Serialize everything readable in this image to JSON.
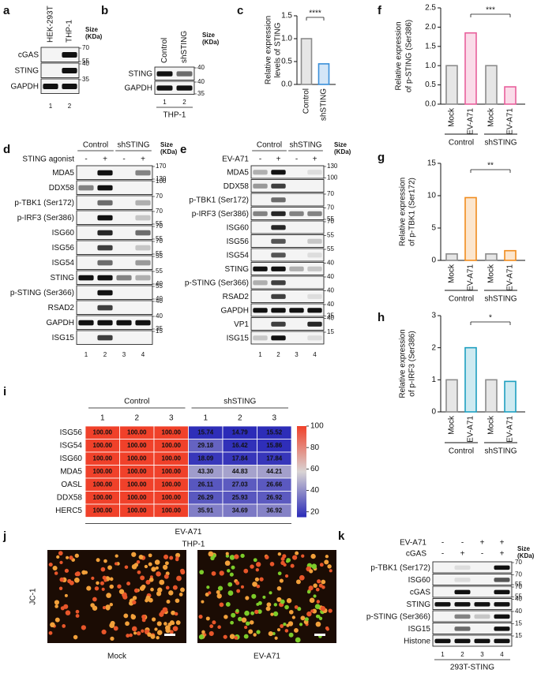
{
  "panel_letters": [
    "a",
    "b",
    "c",
    "d",
    "e",
    "f",
    "g",
    "h",
    "i",
    "j",
    "k"
  ],
  "blots": {
    "a": {
      "columns": [
        "HEK-293T",
        "THP-1"
      ],
      "size_label": [
        "Size",
        "(KDa)"
      ],
      "rows": [
        {
          "label": "cGAS",
          "markers": [
            70,
            55
          ]
        },
        {
          "label": "STING",
          "markers": [
            40
          ]
        },
        {
          "label": "GAPDH",
          "markers": [
            35
          ]
        }
      ],
      "lanes": [
        "1",
        "2"
      ]
    },
    "b": {
      "columns": [
        "Control",
        "shSTING"
      ],
      "size_label": [
        "Size",
        "(KDa)"
      ],
      "rows": [
        {
          "label": "STING",
          "markers": [
            40
          ]
        },
        {
          "label": "GAPDH",
          "markers": [
            40,
            35
          ]
        }
      ],
      "lanes": [
        "1",
        "2"
      ],
      "cell_line": "THP-1"
    },
    "d": {
      "groups": [
        "Control",
        "shSTING"
      ],
      "treatment": "STING agonist",
      "signs": [
        "-",
        "+",
        "-",
        "+"
      ],
      "size_label": [
        "Size",
        "(KDa)"
      ],
      "rows": [
        {
          "label": "MDA5",
          "markers": [
            170,
            130
          ]
        },
        {
          "label": "DDX58",
          "markers": [
            100
          ]
        },
        {
          "label": "p-TBK1 (Ser172)",
          "markers": [
            70
          ]
        },
        {
          "label": "p-IRF3 (Ser386)",
          "markers": [
            70,
            55
          ]
        },
        {
          "label": "ISG60",
          "markers": [
            70,
            55
          ]
        },
        {
          "label": "ISG56",
          "markers": [
            70,
            55
          ]
        },
        {
          "label": "ISG54",
          "markers": [
            55
          ]
        },
        {
          "label": "STING",
          "markers": [
            55,
            40
          ]
        },
        {
          "label": "p-STING (Ser366)",
          "markers": [
            55,
            40
          ]
        },
        {
          "label": "RSAD2",
          "markers": [
            40
          ]
        },
        {
          "label": "GAPDH",
          "markers": [
            40,
            35
          ]
        },
        {
          "label": "ISG15",
          "markers": [
            15
          ]
        }
      ],
      "lanes": [
        "1",
        "2",
        "3",
        "4"
      ]
    },
    "e": {
      "groups": [
        "Control",
        "shSTING"
      ],
      "treatment": "EV-A71",
      "signs": [
        "-",
        "+",
        "-",
        "+"
      ],
      "size_label": [
        "Size",
        "(KDa)"
      ],
      "rows": [
        {
          "label": "MDA5",
          "markers": [
            130,
            100
          ]
        },
        {
          "label": "DDX58",
          "markers": []
        },
        {
          "label": "p-TBK1 (Ser172)",
          "markers": [
            70
          ]
        },
        {
          "label": "p-IRF3 (Ser386)",
          "markers": [
            70,
            55
          ]
        },
        {
          "label": "ISG60",
          "markers": [
            70
          ]
        },
        {
          "label": "ISG56",
          "markers": [
            55
          ]
        },
        {
          "label": "ISG54",
          "markers": [
            55
          ]
        },
        {
          "label": "STING",
          "markers": [
            40
          ]
        },
        {
          "label": "p-STING (Ser366)",
          "markers": [
            40
          ]
        },
        {
          "label": "RSAD2",
          "markers": [
            40
          ]
        },
        {
          "label": "GAPDH",
          "markers": [
            40,
            35
          ]
        },
        {
          "label": "VP1",
          "markers": [
            40
          ]
        },
        {
          "label": "ISG15",
          "markers": [
            15
          ]
        }
      ],
      "lanes": [
        "1",
        "2",
        "3",
        "4"
      ]
    },
    "k": {
      "treatments": [
        {
          "name": "EV-A71",
          "signs": [
            "-",
            "-",
            "+",
            "+"
          ]
        },
        {
          "name": "cGAS",
          "signs": [
            "-",
            "+",
            "-",
            "+"
          ]
        }
      ],
      "size_label": [
        "Size",
        "(KDa)"
      ],
      "rows": [
        {
          "label": "p-TBK1 (Ser172)",
          "markers": [
            70
          ]
        },
        {
          "label": "ISG60",
          "markers": [
            70,
            55
          ]
        },
        {
          "label": "cGAS",
          "markers": [
            70,
            55
          ]
        },
        {
          "label": "STING",
          "markers": [
            40
          ]
        },
        {
          "label": "p-STING (Ser366)",
          "markers": [
            40
          ]
        },
        {
          "label": "ISG15",
          "markers": [
            15
          ]
        },
        {
          "label": "Histone",
          "markers": [
            15
          ]
        }
      ],
      "lanes": [
        "1",
        "2",
        "3",
        "4"
      ],
      "cell_line": "293T-STING"
    }
  },
  "chart_data": [
    {
      "type": "bar",
      "ylabel": [
        "Relative expression",
        "levels of STING"
      ],
      "categories": [
        "Control",
        "shSTING"
      ],
      "values": [
        1.0,
        0.45
      ],
      "colors": [
        "#8c8c8c",
        "#3a8fd9"
      ],
      "ylim": [
        0,
        1.5
      ],
      "yticks": [
        {
          "value": 0,
          "label": "0.0"
        },
        0.5,
        {
          "value": 1,
          "label": "1.0"
        },
        1.5
      ],
      "significance": "****"
    },
    {
      "type": "bar",
      "ylabel": [
        "Relative expression",
        "of p-STING (Ser386)"
      ],
      "categories": [
        "Mock",
        "EV-A71",
        "Mock",
        "EV-A71"
      ],
      "values": [
        1.0,
        1.85,
        1.0,
        0.45
      ],
      "colors": [
        "#8c8c8c",
        "#e8609c",
        "#8c8c8c",
        "#e8609c"
      ],
      "groups": [
        "Control",
        "shSTING"
      ],
      "ylim": [
        0,
        2.5
      ],
      "yticks": [
        {
          "value": 0,
          "label": "0.0"
        },
        0.5,
        {
          "value": 1,
          "label": "1.0"
        },
        1.5,
        {
          "value": 2,
          "label": "2.0"
        },
        2.5
      ],
      "significance": "***"
    },
    {
      "type": "bar",
      "ylabel": [
        "Relative expression",
        "of p-TBK1 (Ser172)"
      ],
      "categories": [
        "Mock",
        "EV-A71",
        "Mock",
        "EV-A71"
      ],
      "values": [
        1.0,
        9.7,
        1.0,
        1.5
      ],
      "colors": [
        "#8c8c8c",
        "#f08c1e",
        "#8c8c8c",
        "#f08c1e"
      ],
      "groups": [
        "Control",
        "shSTING"
      ],
      "ylim": [
        0,
        15
      ],
      "yticks": [
        0,
        5,
        10,
        15
      ],
      "significance": "**"
    },
    {
      "type": "bar",
      "ylabel": [
        "Relative expression",
        "of p-IRF3 (Ser386)"
      ],
      "categories": [
        "Mock",
        "EV-A71",
        "Mock",
        "EV-A71"
      ],
      "values": [
        1.0,
        2.0,
        1.0,
        0.95
      ],
      "colors": [
        "#8c8c8c",
        "#1e9fc0",
        "#8c8c8c",
        "#1e9fc0"
      ],
      "groups": [
        "Control",
        "shSTING"
      ],
      "ylim": [
        0,
        3
      ],
      "yticks": [
        0,
        1,
        2,
        3
      ],
      "significance": "*"
    },
    {
      "type": "heatmap",
      "groups": [
        "Control",
        "shSTING"
      ],
      "group_colors": [
        "#e8342a",
        "#3a3ac0"
      ],
      "columns": [
        "1",
        "2",
        "3",
        "1",
        "2",
        "3"
      ],
      "rows": [
        "ISG56",
        "ISG54",
        "ISG60",
        "MDA5",
        "OASL",
        "DDX58",
        "HERC5"
      ],
      "values": [
        [
          100,
          100,
          100,
          15.74,
          14.79,
          15.52
        ],
        [
          100,
          100,
          100,
          29.18,
          16.42,
          15.86
        ],
        [
          100,
          100,
          100,
          18.09,
          17.84,
          17.84
        ],
        [
          100,
          100,
          100,
          43.3,
          44.83,
          44.21
        ],
        [
          100,
          100,
          100,
          26.11,
          27.03,
          26.66
        ],
        [
          100,
          100,
          100,
          26.29,
          25.93,
          26.92
        ],
        [
          100,
          100,
          100,
          35.91,
          34.69,
          36.92
        ]
      ],
      "value_labels": [
        [
          "100.00",
          "100.00",
          "100.00",
          "15.74",
          "14.79",
          "15.52"
        ],
        [
          "100.00",
          "100.00",
          "100.00",
          "29.18",
          "16.42",
          "15.86"
        ],
        [
          "100.00",
          "100.00",
          "100.00",
          "18.09",
          "17.84",
          "17.84"
        ],
        [
          "100.00",
          "100.00",
          "100.00",
          "43.30",
          "44.83",
          "44.21"
        ],
        [
          "100.00",
          "100.00",
          "100.00",
          "26.11",
          "27.03",
          "26.66"
        ],
        [
          "100.00",
          "100.00",
          "100.00",
          "26.29",
          "25.93",
          "26.92"
        ],
        [
          "100.00",
          "100.00",
          "100.00",
          "35.91",
          "34.69",
          "36.92"
        ]
      ],
      "clim": [
        15,
        100
      ],
      "cticks": [
        20,
        40,
        60,
        80,
        100
      ],
      "xlabel": "EV-A71"
    }
  ],
  "image_panel": {
    "title": "THP-1",
    "ylabel": "JC-1",
    "labels": [
      "Mock",
      "EV-A71"
    ]
  }
}
